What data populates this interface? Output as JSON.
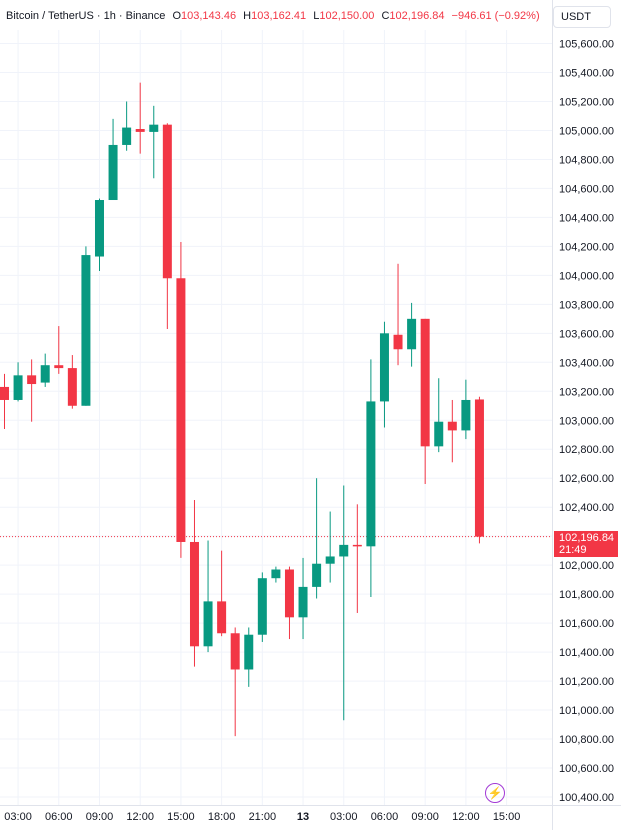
{
  "header": {
    "symbol": "Bitcoin / TetherUS · 1h · Binance",
    "open_label": "O",
    "open": "103,143.46",
    "high_label": "H",
    "high": "103,162.41",
    "low_label": "L",
    "low": "102,150.00",
    "close_label": "C",
    "close": "102,196.84",
    "change": "−946.61 (−0.92%)"
  },
  "currency_button": {
    "label": "USDT"
  },
  "last_price": {
    "price": "102,196.84",
    "countdown": "21:49"
  },
  "colors": {
    "up": "#089981",
    "down": "#f23645",
    "grid": "#f0f3fa",
    "text": "#131722",
    "indicator": "#a23ad6"
  },
  "icons": {
    "indicator": "lightning-icon"
  },
  "chart_data": {
    "type": "candlestick",
    "y_axis": {
      "ticks": [
        100400,
        100600,
        100800,
        101000,
        101200,
        101400,
        101600,
        101800,
        102000,
        102200,
        102400,
        102600,
        102800,
        103000,
        103200,
        103400,
        103600,
        103800,
        104000,
        104200,
        104400,
        104600,
        104800,
        105000,
        105200,
        105400,
        105600
      ],
      "tick_labels": [
        "100,400.00",
        "100,600.00",
        "100,800.00",
        "101,000.00",
        "101,200.00",
        "101,400.00",
        "101,600.00",
        "101,800.00",
        "102,000.00",
        "102,200.00",
        "102,400.00",
        "102,600.00",
        "102,800.00",
        "103,000.00",
        "103,200.00",
        "103,400.00",
        "103,600.00",
        "103,800.00",
        "104,000.00",
        "104,200.00",
        "104,400.00",
        "104,600.00",
        "104,800.00",
        "105,000.00",
        "105,200.00",
        "105,400.00",
        "105,600.00"
      ],
      "range": [
        100320,
        105780
      ],
      "position": "right"
    },
    "x_axis": {
      "tick_labels": [
        "03:00",
        "06:00",
        "09:00",
        "12:00",
        "15:00",
        "18:00",
        "21:00",
        "13",
        "03:00",
        "06:00",
        "09:00",
        "12:00",
        "15:00"
      ],
      "tick_candle_index": [
        1,
        4,
        7,
        10,
        13,
        16,
        19,
        22,
        25,
        28,
        31,
        34,
        37
      ],
      "bold_labels": [
        "13"
      ]
    },
    "grid": true,
    "last_price_line": 102196.84,
    "candles": [
      {
        "o": 103230,
        "h": 103320,
        "l": 102940,
        "c": 103140
      },
      {
        "o": 103140,
        "h": 103400,
        "l": 103130,
        "c": 103310
      },
      {
        "o": 103310,
        "h": 103420,
        "l": 102990,
        "c": 103250
      },
      {
        "o": 103260,
        "h": 103460,
        "l": 103230,
        "c": 103380
      },
      {
        "o": 103380,
        "h": 103650,
        "l": 103320,
        "c": 103360
      },
      {
        "o": 103360,
        "h": 103450,
        "l": 103080,
        "c": 103100
      },
      {
        "o": 103100,
        "h": 104200,
        "l": 103100,
        "c": 104140
      },
      {
        "o": 104130,
        "h": 104530,
        "l": 104030,
        "c": 104520
      },
      {
        "o": 104520,
        "h": 105080,
        "l": 104520,
        "c": 104900
      },
      {
        "o": 104900,
        "h": 105200,
        "l": 104860,
        "c": 105020
      },
      {
        "o": 105010,
        "h": 105330,
        "l": 104840,
        "c": 104990
      },
      {
        "o": 104990,
        "h": 105170,
        "l": 104670,
        "c": 105040
      },
      {
        "o": 105040,
        "h": 105050,
        "l": 103630,
        "c": 103980
      },
      {
        "o": 103980,
        "h": 104230,
        "l": 102050,
        "c": 102160
      },
      {
        "o": 102160,
        "h": 102450,
        "l": 101300,
        "c": 101440
      },
      {
        "o": 101440,
        "h": 102170,
        "l": 101400,
        "c": 101750
      },
      {
        "o": 101750,
        "h": 102100,
        "l": 101510,
        "c": 101530
      },
      {
        "o": 101530,
        "h": 101570,
        "l": 100820,
        "c": 101280
      },
      {
        "o": 101280,
        "h": 101570,
        "l": 101160,
        "c": 101520
      },
      {
        "o": 101520,
        "h": 101950,
        "l": 101470,
        "c": 101910
      },
      {
        "o": 101910,
        "h": 101990,
        "l": 101880,
        "c": 101970
      },
      {
        "o": 101970,
        "h": 101990,
        "l": 101490,
        "c": 101640
      },
      {
        "o": 101640,
        "h": 102050,
        "l": 101490,
        "c": 101850
      },
      {
        "o": 101850,
        "h": 102600,
        "l": 101770,
        "c": 102010
      },
      {
        "o": 102010,
        "h": 102370,
        "l": 101880,
        "c": 102060
      },
      {
        "o": 102060,
        "h": 102550,
        "l": 100930,
        "c": 102140
      },
      {
        "o": 102140,
        "h": 102420,
        "l": 101670,
        "c": 102130
      },
      {
        "o": 102130,
        "h": 103420,
        "l": 101780,
        "c": 103130
      },
      {
        "o": 103130,
        "h": 103680,
        "l": 102950,
        "c": 103600
      },
      {
        "o": 103590,
        "h": 104080,
        "l": 103380,
        "c": 103490
      },
      {
        "o": 103490,
        "h": 103810,
        "l": 103370,
        "c": 103700
      },
      {
        "o": 103700,
        "h": 103700,
        "l": 102560,
        "c": 102820
      },
      {
        "o": 102820,
        "h": 103290,
        "l": 102780,
        "c": 102990
      },
      {
        "o": 102990,
        "h": 103140,
        "l": 102710,
        "c": 102930
      },
      {
        "o": 102930,
        "h": 103280,
        "l": 102870,
        "c": 103140
      },
      {
        "o": 103143.46,
        "h": 103162.41,
        "l": 102150.0,
        "c": 102196.84
      }
    ]
  }
}
